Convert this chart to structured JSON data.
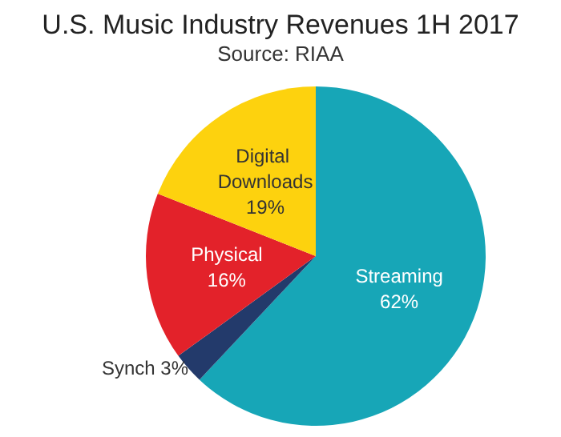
{
  "chart_data": {
    "type": "pie",
    "title": "U.S. Music Industry Revenues 1H 2017",
    "subtitle": "Source: RIAA",
    "categories": [
      "Streaming",
      "Synch",
      "Physical",
      "Digital Downloads"
    ],
    "values": [
      62,
      3,
      16,
      19
    ],
    "value_labels": [
      "62%",
      "3%",
      "16%",
      "19%"
    ],
    "colors": [
      "#17a6b7",
      "#233a6b",
      "#e3222a",
      "#fdd20e"
    ]
  }
}
